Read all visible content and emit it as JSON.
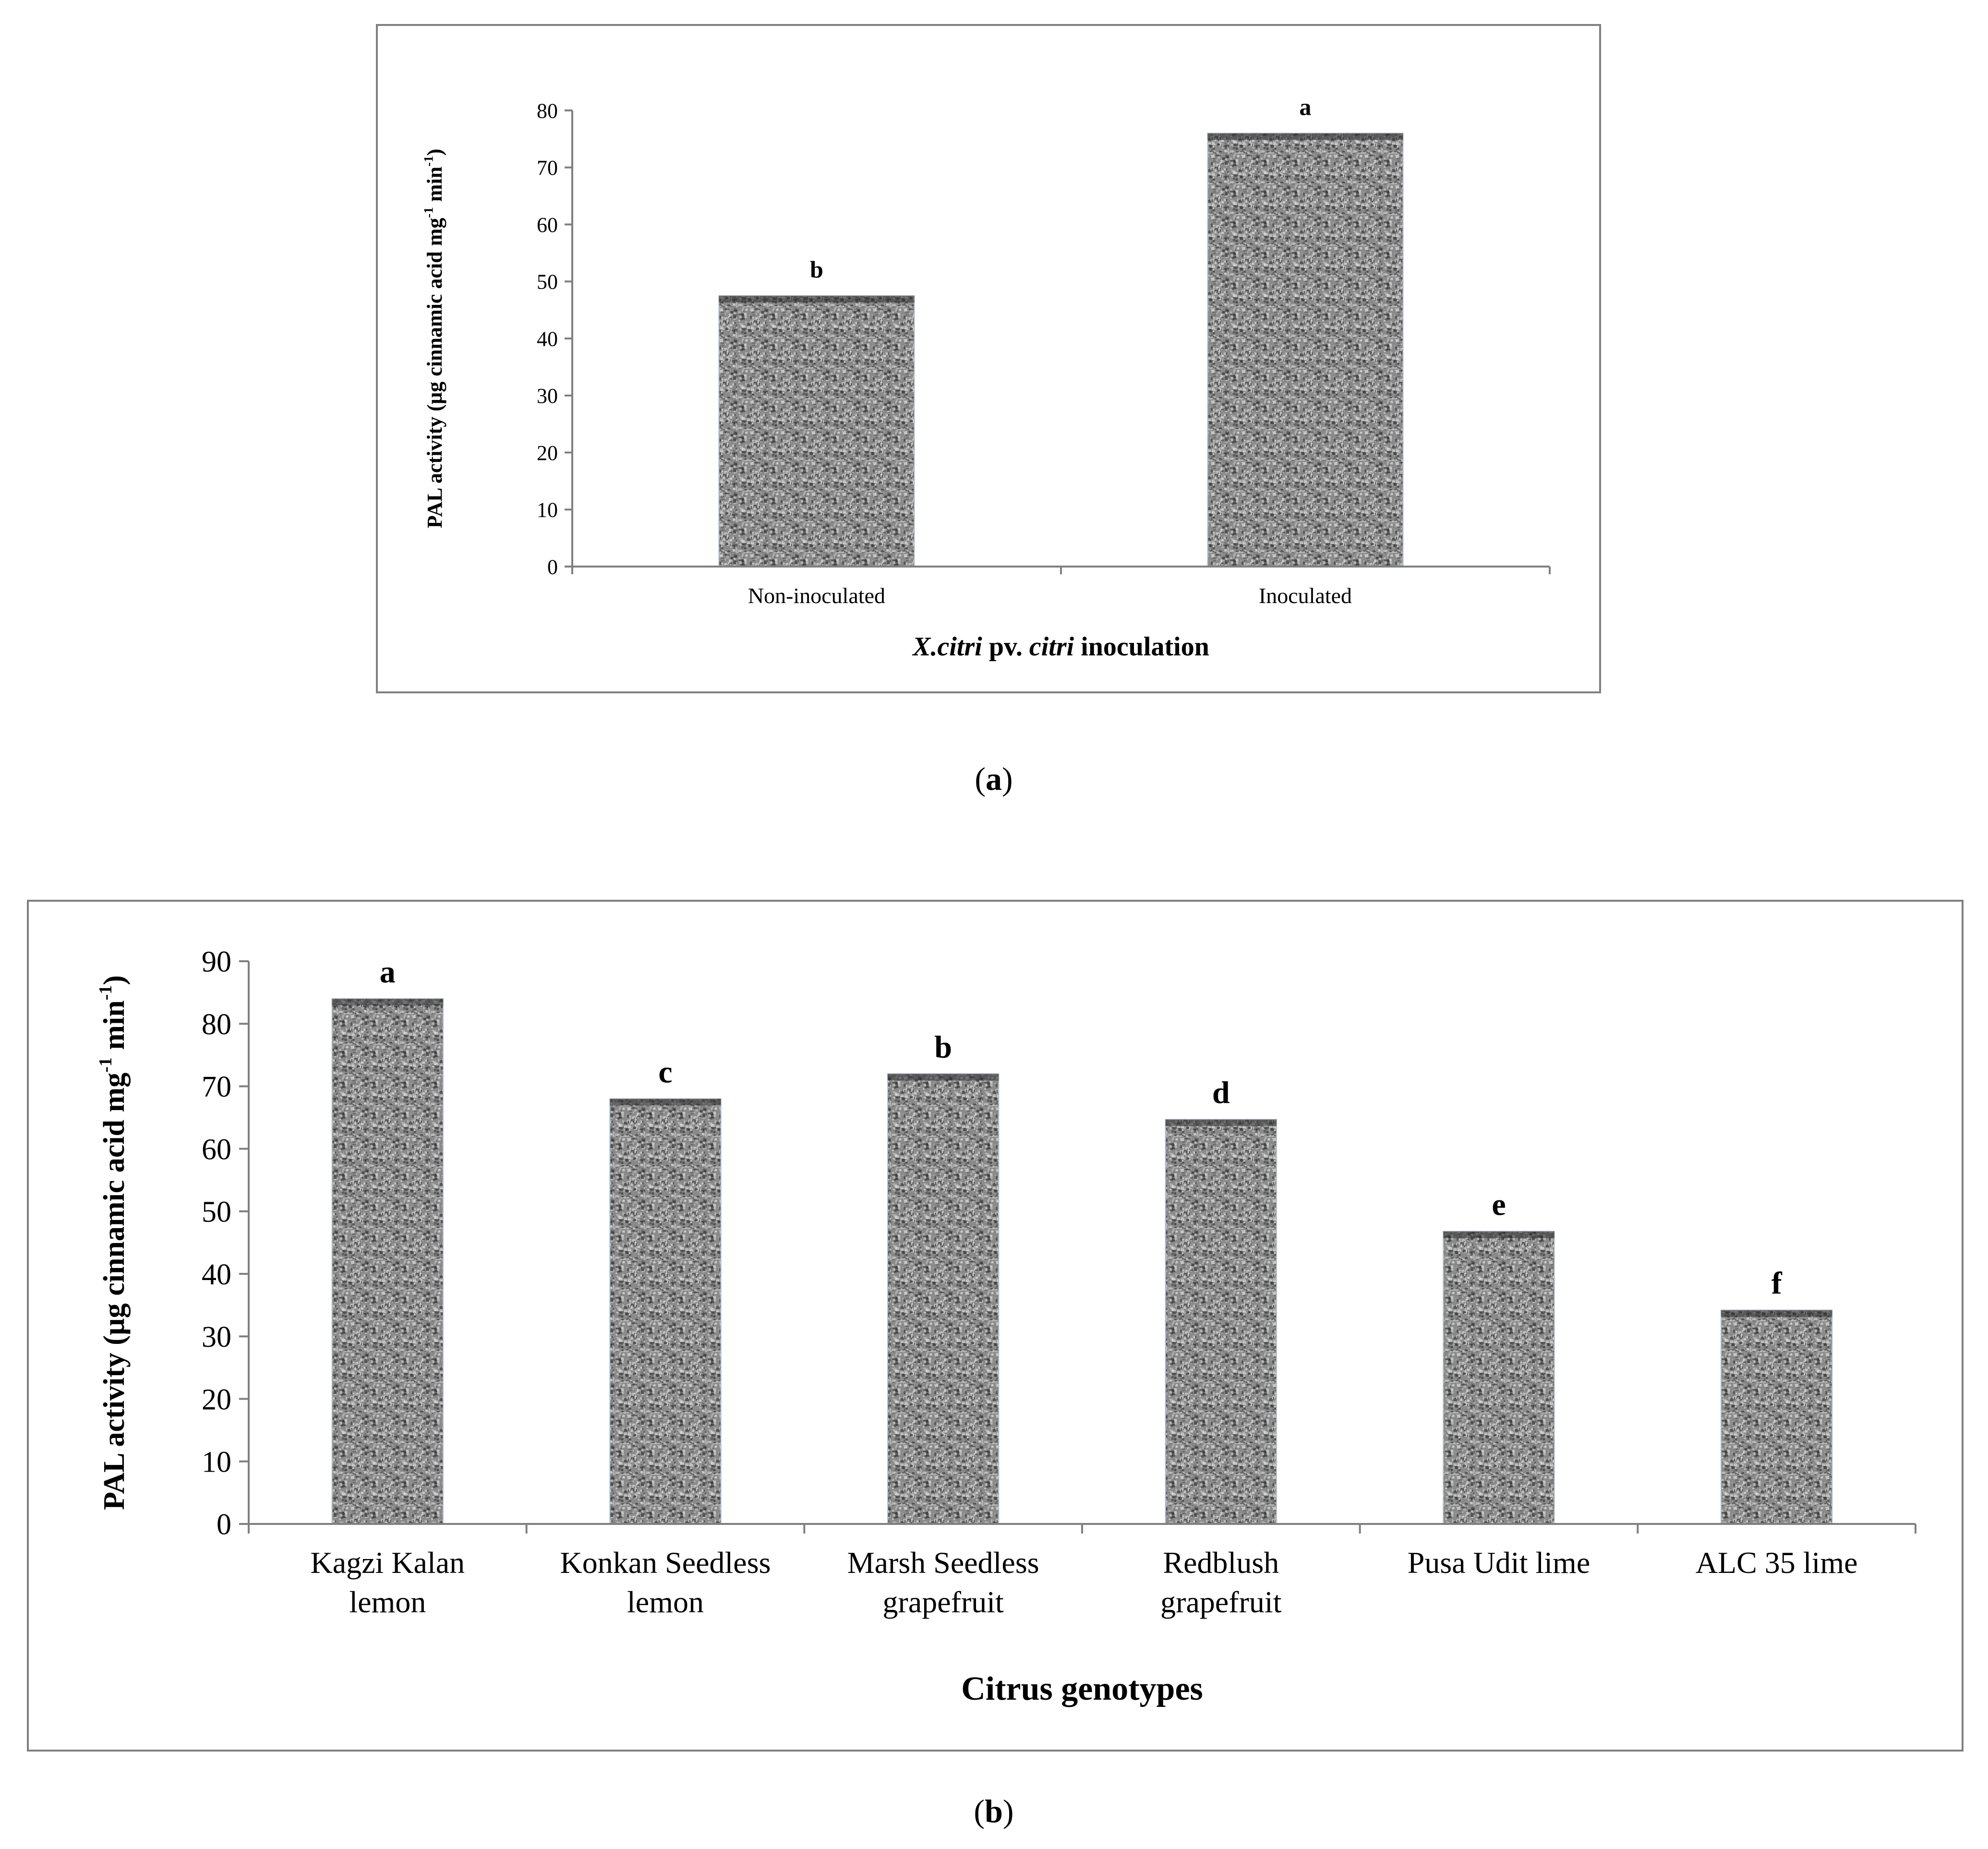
{
  "panel_a": {
    "caption_open": "(",
    "caption_letter": "a",
    "caption_close": ")"
  },
  "panel_b": {
    "caption_open": "(",
    "caption_letter": "b",
    "caption_close": ")"
  },
  "colors": {
    "bar_fill": "#8a8a8a",
    "bar_speckle_dark": "#3a3a3a",
    "bar_speckle_light": "#d8d8d8",
    "axis": "#7f7f7f",
    "frame": "#7f7f7f",
    "text": "#000000"
  },
  "chart_data": [
    {
      "id": "a",
      "type": "bar",
      "categories": [
        "Non-inoculated",
        "Inoculated"
      ],
      "values": [
        47.5,
        76
      ],
      "significance_letters": [
        "b",
        "a"
      ],
      "ylabel_parts": [
        "PAL activity (µg cinnamic acid mg",
        "-1",
        " min",
        "-1",
        ")"
      ],
      "xlabel_parts": [
        {
          "text": "X.citri",
          "italic": true
        },
        {
          "text": " pv. ",
          "italic": false
        },
        {
          "text": "citri",
          "italic": true
        },
        {
          "text": " inoculation",
          "italic": false
        }
      ],
      "yticks": [
        0,
        10,
        20,
        30,
        40,
        50,
        60,
        70,
        80
      ],
      "ylim": [
        0,
        80
      ],
      "grid": false
    },
    {
      "id": "b",
      "type": "bar",
      "categories": [
        [
          "Kagzi Kalan",
          "lemon"
        ],
        [
          "Konkan Seedless",
          "lemon"
        ],
        [
          "Marsh Seedless",
          "grapefruit"
        ],
        [
          "Redblush",
          "grapefruit"
        ],
        [
          "Pusa Udit lime"
        ],
        [
          "ALC 35 lime"
        ]
      ],
      "values": [
        84,
        68,
        72,
        64.7,
        46.8,
        34.2
      ],
      "significance_letters": [
        "a",
        "c",
        "b",
        "d",
        "e",
        "f"
      ],
      "ylabel_parts": [
        "PAL activity (µg cinnamic acid mg",
        "-1",
        " min",
        "-1",
        ")"
      ],
      "xlabel_parts": [
        {
          "text": "Citrus genotypes",
          "italic": false
        }
      ],
      "yticks": [
        0,
        10,
        20,
        30,
        40,
        50,
        60,
        70,
        80,
        90
      ],
      "ylim": [
        0,
        90
      ],
      "grid": false
    }
  ]
}
